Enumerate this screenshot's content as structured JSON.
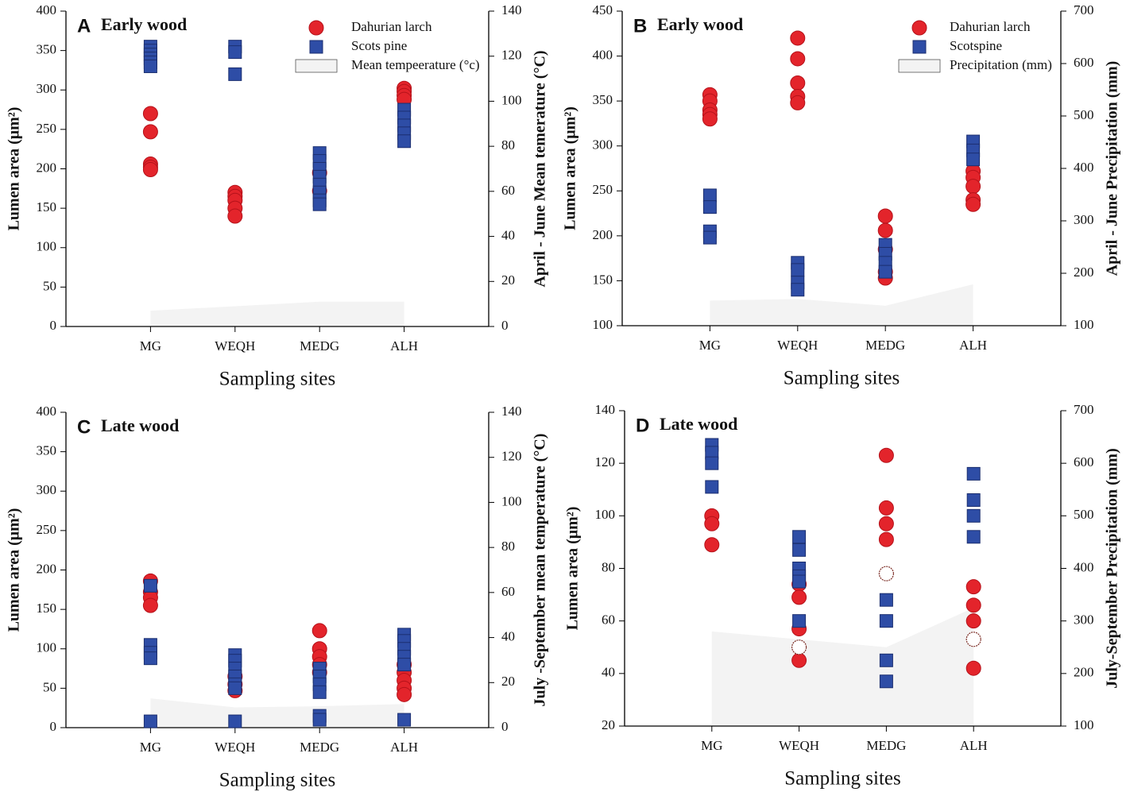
{
  "chart_data": [
    {
      "type": "scatter",
      "panel": "A",
      "title": "Early wood",
      "xlabel": "Sampling sites",
      "ylabel": "Lumen area (μm²)",
      "y2label": "April - June Mean temerature (°C)",
      "categories": [
        "MG",
        "WEQH",
        "MEDG",
        "ALH"
      ],
      "ylim": [
        0,
        400
      ],
      "yticks": [
        0,
        50,
        100,
        150,
        200,
        250,
        300,
        350,
        400
      ],
      "y2lim": [
        0,
        140
      ],
      "y2ticks": [
        0,
        20,
        40,
        60,
        80,
        100,
        120,
        140
      ],
      "series": [
        {
          "name": "Dahurian larch",
          "marker": "circle",
          "color": "#e3242b",
          "x": [
            "MG",
            "MG",
            "MG",
            "MG",
            "MG",
            "WEQH",
            "WEQH",
            "WEQH",
            "WEQH",
            "WEQH",
            "MEDG",
            "MEDG",
            "ALH",
            "ALH",
            "ALH",
            "ALH"
          ],
          "values": [
            270,
            247,
            206,
            202,
            199,
            170,
            165,
            160,
            150,
            140,
            195,
            172,
            302,
            298,
            293,
            288
          ]
        },
        {
          "name": "Scots pine",
          "marker": "square",
          "color": "#2e4da6",
          "x": [
            "MG",
            "MG",
            "MG",
            "MG",
            "MG",
            "MG",
            "WEQH",
            "WEQH",
            "WEQH",
            "MEDG",
            "MEDG",
            "MEDG",
            "MEDG",
            "MEDG",
            "MEDG",
            "MEDG",
            "MEDG",
            "ALH",
            "ALH",
            "ALH",
            "ALH",
            "ALH"
          ],
          "values": [
            355,
            350,
            345,
            340,
            335,
            330,
            355,
            348,
            320,
            220,
            210,
            200,
            190,
            180,
            170,
            160,
            155,
            275,
            265,
            255,
            245,
            235
          ]
        },
        {
          "name": "Mean tempeerature (°c)",
          "type": "area",
          "axis": "y2",
          "color": "#f3f3f3",
          "values": [
            7,
            9,
            11,
            11
          ]
        }
      ]
    },
    {
      "type": "scatter",
      "panel": "B",
      "title": "Early wood",
      "xlabel": "Sampling sites",
      "ylabel": "Lumen area (μm²)",
      "y2label": "April - June Precipitation (mm)",
      "categories": [
        "MG",
        "WEQH",
        "MEDG",
        "ALH"
      ],
      "ylim": [
        100,
        450
      ],
      "yticks": [
        100,
        150,
        200,
        250,
        300,
        350,
        400,
        450
      ],
      "y2lim": [
        100,
        700
      ],
      "y2ticks": [
        100,
        200,
        300,
        400,
        500,
        600,
        700
      ],
      "series": [
        {
          "name": "Dahurian larch",
          "marker": "circle",
          "color": "#e3242b",
          "x": [
            "MG",
            "MG",
            "MG",
            "MG",
            "MG",
            "WEQH",
            "WEQH",
            "WEQH",
            "WEQH",
            "WEQH",
            "MEDG",
            "MEDG",
            "MEDG",
            "MEDG",
            "MEDG",
            "ALH",
            "ALH",
            "ALH",
            "ALH",
            "ALH"
          ],
          "values": [
            357,
            350,
            340,
            335,
            330,
            420,
            397,
            370,
            355,
            348,
            222,
            206,
            185,
            160,
            153,
            272,
            265,
            255,
            240,
            235
          ]
        },
        {
          "name": "Scotspine",
          "marker": "square",
          "color": "#2e4da6",
          "x": [
            "MG",
            "MG",
            "MG",
            "MG",
            "WEQH",
            "WEQH",
            "WEQH",
            "WEQH",
            "MEDG",
            "MEDG",
            "MEDG",
            "MEDG",
            "ALH",
            "ALH",
            "ALH"
          ],
          "values": [
            245,
            232,
            205,
            198,
            170,
            162,
            148,
            140,
            190,
            180,
            170,
            160,
            305,
            295,
            285
          ]
        },
        {
          "name": "Precipitation (mm)",
          "type": "area",
          "axis": "y2",
          "color": "#f3f3f3",
          "values": [
            148,
            151,
            138,
            179
          ]
        }
      ]
    },
    {
      "type": "scatter",
      "panel": "C",
      "title": "Late wood",
      "xlabel": "Sampling sites",
      "ylabel": "Lumen area (μm²)",
      "y2label": "July -September mean temperature (°C)",
      "categories": [
        "MG",
        "WEQH",
        "MEDG",
        "ALH"
      ],
      "ylim": [
        0,
        400
      ],
      "yticks": [
        0,
        50,
        100,
        150,
        200,
        250,
        300,
        350,
        400
      ],
      "y2lim": [
        0,
        140
      ],
      "y2ticks": [
        0,
        20,
        40,
        60,
        80,
        100,
        120,
        140
      ],
      "series": [
        {
          "marker": "circle",
          "color": "#e3242b",
          "x": [
            "MG",
            "MG",
            "MG",
            "MG",
            "WEQH",
            "WEQH",
            "WEQH",
            "MEDG",
            "MEDG",
            "MEDG",
            "MEDG",
            "MEDG",
            "ALH",
            "ALH",
            "ALH",
            "ALH",
            "ALH"
          ],
          "values": [
            186,
            172,
            165,
            155,
            65,
            55,
            47,
            123,
            100,
            90,
            80,
            70,
            80,
            70,
            60,
            50,
            42
          ]
        },
        {
          "marker": "square",
          "color": "#2e4da6",
          "x": [
            "MG",
            "MG",
            "MG",
            "MG",
            "MG",
            "WEQH",
            "WEQH",
            "WEQH",
            "WEQH",
            "WEQH",
            "WEQH",
            "WEQH",
            "MEDG",
            "MEDG",
            "MEDG",
            "MEDG",
            "MEDG",
            "MEDG",
            "ALH",
            "ALH",
            "ALH",
            "ALH",
            "ALH",
            "ALH"
          ],
          "values": [
            180,
            105,
            95,
            88,
            8,
            92,
            85,
            75,
            65,
            55,
            50,
            8,
            75,
            65,
            55,
            45,
            15,
            10,
            118,
            110,
            100,
            90,
            80,
            10
          ]
        },
        {
          "type": "area",
          "axis": "y2",
          "color": "#f3f3f3",
          "values": [
            13,
            9,
            9.5,
            10.5
          ]
        }
      ]
    },
    {
      "type": "scatter",
      "panel": "D",
      "title": "Late wood",
      "xlabel": "Sampling sites",
      "ylabel": "Lumen area (μm²)",
      "y2label": "July-September Precipitation  (mm)",
      "categories": [
        "MG",
        "WEQH",
        "MEDG",
        "ALH"
      ],
      "ylim": [
        20,
        140
      ],
      "yticks": [
        20,
        40,
        60,
        80,
        100,
        120,
        140
      ],
      "y2lim": [
        100,
        700
      ],
      "y2ticks": [
        100,
        200,
        300,
        400,
        500,
        600,
        700
      ],
      "series": [
        {
          "marker": "circle",
          "color": "#e3242b",
          "x": [
            "MG",
            "MG",
            "MG",
            "WEQH",
            "WEQH",
            "WEQH",
            "WEQH",
            "MEDG",
            "MEDG",
            "MEDG",
            "MEDG",
            "ALH",
            "ALH",
            "ALH",
            "ALH"
          ],
          "values": [
            100,
            97,
            89,
            74,
            69,
            57,
            45,
            123,
            103,
            97,
            91,
            73,
            66,
            60,
            42
          ]
        },
        {
          "marker": "open",
          "color": "#ffffff",
          "x": [
            "WEQH",
            "MEDG",
            "ALH"
          ],
          "values": [
            50,
            78,
            53
          ]
        },
        {
          "marker": "square",
          "color": "#2e4da6",
          "x": [
            "MG",
            "MG",
            "MG",
            "MG",
            "WEQH",
            "WEQH",
            "WEQH",
            "WEQH",
            "WEQH",
            "WEQH",
            "MEDG",
            "MEDG",
            "MEDG",
            "MEDG",
            "ALH",
            "ALH",
            "ALH",
            "ALH"
          ],
          "values": [
            127,
            124,
            120,
            111,
            92,
            87,
            80,
            77,
            75,
            60,
            68,
            60,
            45,
            37,
            116,
            106,
            100,
            92
          ]
        },
        {
          "type": "area",
          "axis": "y2",
          "color": "#f3f3f3",
          "values": [
            280,
            265,
            250,
            325
          ]
        }
      ]
    }
  ]
}
